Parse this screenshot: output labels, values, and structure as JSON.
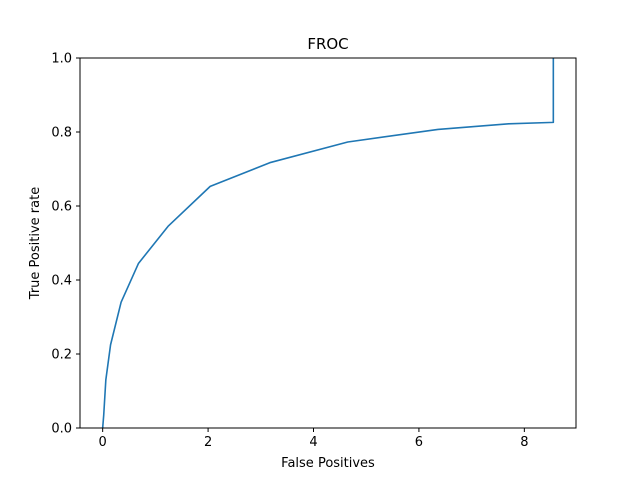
{
  "chart_data": {
    "type": "line",
    "title": "FROC",
    "xlabel": "False Positives",
    "ylabel": "True Positive rate",
    "xlim": [
      -0.43,
      8.98
    ],
    "ylim": [
      0.0,
      1.0
    ],
    "xticks": [
      "0",
      "2",
      "4",
      "6",
      "8"
    ],
    "yticks": [
      "0.0",
      "0.2",
      "0.4",
      "0.6",
      "0.8",
      "1.0"
    ],
    "grid": false,
    "legend": "none",
    "series": [
      {
        "color": "#1f77b4",
        "x": [
          0.0,
          0.02,
          0.06,
          0.15,
          0.35,
          0.68,
          1.24,
          2.04,
          3.17,
          4.65,
          6.36,
          7.7,
          8.55,
          8.55
        ],
        "y": [
          0.0,
          0.035,
          0.13,
          0.225,
          0.34,
          0.445,
          0.545,
          0.653,
          0.717,
          0.773,
          0.807,
          0.822,
          0.826,
          1.0
        ]
      }
    ]
  }
}
